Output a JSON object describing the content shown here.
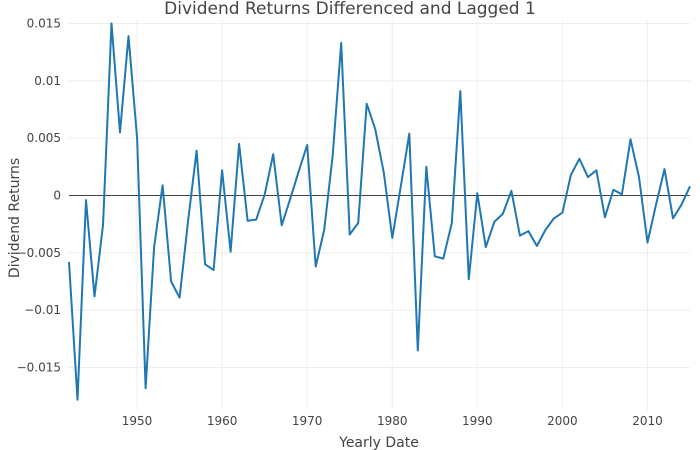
{
  "chart_data": {
    "type": "line",
    "title": "Dividend Returns Differenced and Lagged 1",
    "xlabel": "Yearly Date",
    "ylabel": "Dividend Returns",
    "xlim": [
      1942,
      2015
    ],
    "ylim": [
      -0.0187,
      0.0153
    ],
    "x_ticks": [
      1950,
      1960,
      1970,
      1980,
      1990,
      2000,
      2010
    ],
    "y_ticks": [
      -0.015,
      -0.01,
      -0.005,
      0,
      0.005,
      0.01,
      0.015
    ],
    "x_tick_labels": [
      "1950",
      "1960",
      "1970",
      "1980",
      "1990",
      "2000",
      "2010"
    ],
    "y_tick_labels": [
      "−0.015",
      "−0.01",
      "−0.005",
      "0",
      "0.005",
      "0.01",
      "0.015"
    ],
    "grid": true,
    "zero_line": true,
    "series": [
      {
        "color": "#1f77b4",
        "x": [
          1942,
          1943,
          1944,
          1945,
          1946,
          1947,
          1948,
          1949,
          1950,
          1951,
          1952,
          1953,
          1954,
          1955,
          1956,
          1957,
          1958,
          1959,
          1960,
          1961,
          1962,
          1963,
          1964,
          1965,
          1966,
          1967,
          1968,
          1969,
          1970,
          1971,
          1972,
          1973,
          1974,
          1975,
          1976,
          1977,
          1978,
          1979,
          1980,
          1981,
          1982,
          1983,
          1984,
          1985,
          1986,
          1987,
          1988,
          1989,
          1990,
          1991,
          1992,
          1993,
          1994,
          1995,
          1996,
          1997,
          1998,
          1999,
          2000,
          2001,
          2002,
          2003,
          2004,
          2005,
          2006,
          2007,
          2008,
          2009,
          2010,
          2011,
          2012,
          2013,
          2014,
          2015
        ],
        "values": [
          -0.0058,
          -0.0178,
          -0.0004,
          -0.0088,
          -0.0026,
          0.015,
          0.0055,
          0.0139,
          0.005,
          -0.0168,
          -0.0045,
          0.0009,
          -0.0075,
          -0.0089,
          -0.0022,
          0.0039,
          -0.006,
          -0.0065,
          0.0022,
          -0.0049,
          0.0045,
          -0.0022,
          -0.0021,
          0.0001,
          0.0036,
          -0.0026,
          -0.0003,
          0.0021,
          0.0044,
          -0.0062,
          -0.003,
          0.0035,
          0.0133,
          -0.0034,
          -0.0024,
          0.008,
          0.0058,
          0.002,
          -0.0037,
          0.0008,
          0.0054,
          -0.0135,
          0.0025,
          -0.0053,
          -0.0055,
          -0.0024,
          0.0091,
          -0.0073,
          0.0002,
          -0.0045,
          -0.0023,
          -0.0016,
          0.0004,
          -0.0035,
          -0.0031,
          -0.0044,
          -0.003,
          -0.002,
          -0.0015,
          0.0018,
          0.0032,
          0.0016,
          0.0022,
          -0.0019,
          0.0005,
          0.0001,
          0.0049,
          0.0016,
          -0.0041,
          -0.0008,
          0.0023,
          -0.002,
          -0.0008,
          0.0008
        ]
      }
    ]
  }
}
